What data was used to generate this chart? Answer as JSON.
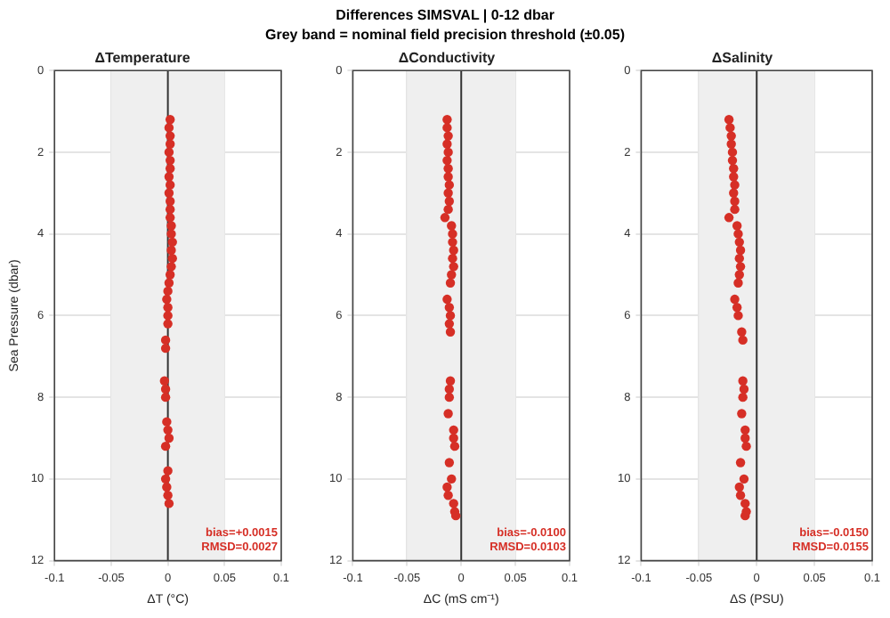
{
  "chart_data": [
    {
      "type": "other",
      "title": "Differences SIMSVAL  |  0-12 dbar",
      "subtitle": "Grey band = nominal field precision threshold (±0.05)"
    },
    {
      "type": "scatter",
      "title": "ΔTemperature",
      "xlabel": "ΔT (°C)",
      "ylabel": "Sea Pressure (dbar)",
      "xlim": [
        -0.1,
        0.1
      ],
      "xticks": [
        -0.1,
        -0.05,
        0,
        0.05,
        0.1
      ],
      "ylim": [
        12,
        0
      ],
      "yticks": [
        0,
        2,
        4,
        6,
        8,
        10,
        12
      ],
      "grid": true,
      "marker": "circle",
      "legend": false,
      "bands": [
        {
          "axis": "x",
          "from": -0.05,
          "to": 0.05,
          "color": "#efefef"
        }
      ],
      "ref_lines": [
        {
          "axis": "x",
          "value": 0,
          "color": "#333333"
        }
      ],
      "annotations": [
        "bias=+0.0015",
        "RMSD=0.0027"
      ],
      "series": [
        {
          "color": "#d62f26",
          "x": [
            0.002,
            0.001,
            0.002,
            0.002,
            0.001,
            0.002,
            0.002,
            0.001,
            0.002,
            0.001,
            0.002,
            0.002,
            0.002,
            0.003,
            0.003,
            0.004,
            0.003,
            0.004,
            0.003,
            0.002,
            0.001,
            0.0,
            -0.001,
            0.0,
            0.0,
            0.0,
            -0.002,
            -0.002,
            -0.003,
            -0.002,
            -0.002,
            -0.001,
            0.0,
            0.001,
            -0.002,
            0.0,
            -0.002,
            -0.001,
            0.0,
            0.001
          ],
          "values": [
            1.2,
            1.4,
            1.6,
            1.8,
            2.0,
            2.2,
            2.4,
            2.6,
            2.8,
            3.0,
            3.2,
            3.4,
            3.6,
            3.8,
            4.0,
            4.2,
            4.4,
            4.6,
            4.8,
            5.0,
            5.2,
            5.4,
            5.6,
            5.8,
            6.0,
            6.2,
            6.6,
            6.8,
            7.6,
            7.8,
            8.0,
            8.6,
            8.8,
            9.0,
            9.2,
            9.8,
            10.0,
            10.2,
            10.4,
            10.6
          ]
        }
      ]
    },
    {
      "type": "scatter",
      "title": "ΔConductivity",
      "xlabel": "ΔC (mS cm⁻¹)",
      "xlim": [
        -0.1,
        0.1
      ],
      "xticks": [
        -0.1,
        -0.05,
        0,
        0.05,
        0.1
      ],
      "ylim": [
        12,
        0
      ],
      "yticks": [
        0,
        2,
        4,
        6,
        8,
        10,
        12
      ],
      "grid": true,
      "marker": "circle",
      "legend": false,
      "bands": [
        {
          "axis": "x",
          "from": -0.05,
          "to": 0.05,
          "color": "#efefef"
        }
      ],
      "ref_lines": [
        {
          "axis": "x",
          "value": 0,
          "color": "#333333"
        }
      ],
      "annotations": [
        "bias=-0.0100",
        "RMSD=0.0103"
      ],
      "series": [
        {
          "color": "#d62f26",
          "x": [
            -0.013,
            -0.013,
            -0.012,
            -0.013,
            -0.012,
            -0.013,
            -0.012,
            -0.012,
            -0.011,
            -0.012,
            -0.011,
            -0.012,
            -0.015,
            -0.009,
            -0.008,
            -0.008,
            -0.007,
            -0.008,
            -0.007,
            -0.009,
            -0.01,
            -0.013,
            -0.011,
            -0.01,
            -0.011,
            -0.01,
            -0.01,
            -0.011,
            -0.011,
            -0.012,
            -0.007,
            -0.007,
            -0.006,
            -0.011,
            -0.009,
            -0.013,
            -0.012,
            -0.007,
            -0.006,
            -0.005
          ],
          "values": [
            1.2,
            1.4,
            1.6,
            1.8,
            2.0,
            2.2,
            2.4,
            2.6,
            2.8,
            3.0,
            3.2,
            3.4,
            3.6,
            3.8,
            4.0,
            4.2,
            4.4,
            4.6,
            4.8,
            5.0,
            5.2,
            5.6,
            5.8,
            6.0,
            6.2,
            6.4,
            7.6,
            7.8,
            8.0,
            8.4,
            8.8,
            9.0,
            9.2,
            9.6,
            10.0,
            10.2,
            10.4,
            10.6,
            10.8,
            10.9
          ]
        }
      ]
    },
    {
      "type": "scatter",
      "title": "ΔSalinity",
      "xlabel": "ΔS (PSU)",
      "xlim": [
        -0.1,
        0.1
      ],
      "xticks": [
        -0.1,
        -0.05,
        0,
        0.05,
        0.1
      ],
      "ylim": [
        12,
        0
      ],
      "yticks": [
        0,
        2,
        4,
        6,
        8,
        10,
        12
      ],
      "grid": true,
      "marker": "circle",
      "legend": false,
      "bands": [
        {
          "axis": "x",
          "from": -0.05,
          "to": 0.05,
          "color": "#efefef"
        }
      ],
      "ref_lines": [
        {
          "axis": "x",
          "value": 0,
          "color": "#333333"
        }
      ],
      "annotations": [
        "bias=-0.0150",
        "RMSD=0.0155"
      ],
      "series": [
        {
          "color": "#d62f26",
          "x": [
            -0.024,
            -0.023,
            -0.022,
            -0.022,
            -0.021,
            -0.021,
            -0.02,
            -0.02,
            -0.019,
            -0.02,
            -0.019,
            -0.019,
            -0.024,
            -0.017,
            -0.016,
            -0.015,
            -0.014,
            -0.015,
            -0.014,
            -0.015,
            -0.016,
            -0.019,
            -0.017,
            -0.016,
            -0.013,
            -0.012,
            -0.012,
            -0.011,
            -0.012,
            -0.013,
            -0.01,
            -0.01,
            -0.009,
            -0.014,
            -0.011,
            -0.015,
            -0.014,
            -0.01,
            -0.009,
            -0.01
          ],
          "values": [
            1.2,
            1.4,
            1.6,
            1.8,
            2.0,
            2.2,
            2.4,
            2.6,
            2.8,
            3.0,
            3.2,
            3.4,
            3.6,
            3.8,
            4.0,
            4.2,
            4.4,
            4.6,
            4.8,
            5.0,
            5.2,
            5.6,
            5.8,
            6.0,
            6.4,
            6.6,
            7.6,
            7.8,
            8.0,
            8.4,
            8.8,
            9.0,
            9.2,
            9.6,
            10.0,
            10.2,
            10.4,
            10.6,
            10.8,
            10.9
          ]
        }
      ]
    }
  ]
}
